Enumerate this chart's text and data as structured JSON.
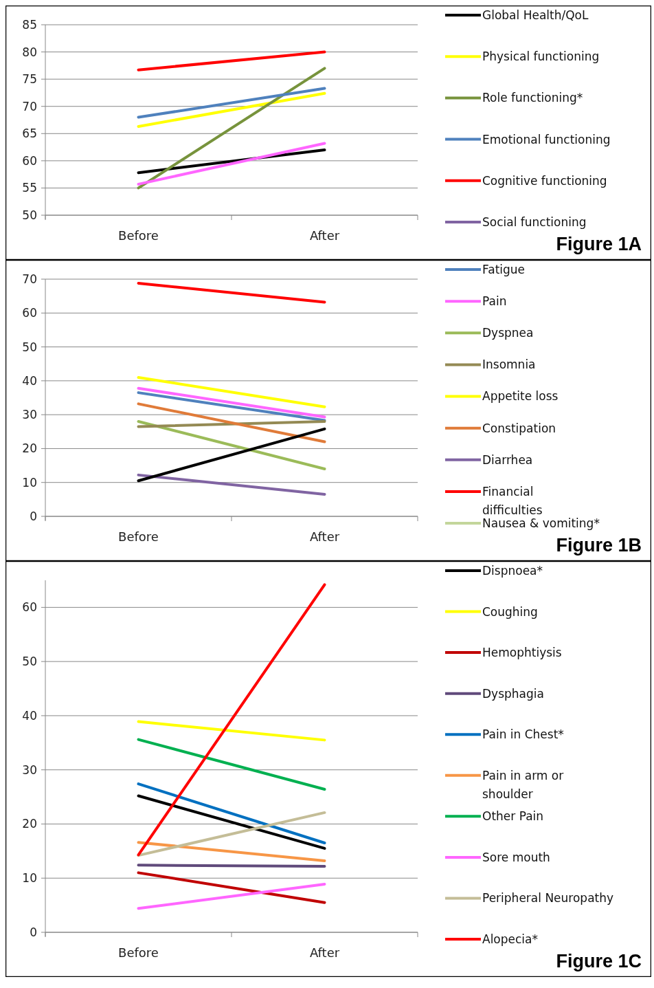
{
  "chart_data": [
    {
      "type": "line",
      "annotations": [
        "Figure 1A"
      ],
      "categories": [
        "Before",
        "After"
      ],
      "ylim": [
        50,
        85
      ],
      "yticks": [
        50,
        55,
        60,
        65,
        70,
        75,
        80,
        85
      ],
      "grid": "y",
      "legend": "right",
      "marker": "none",
      "line_style": "solid",
      "series": [
        {
          "name": "Global Health/QoL",
          "color": "#000000",
          "values": [
            57.8,
            62
          ]
        },
        {
          "name": "Physical functioning",
          "color": "#ffff00",
          "values": [
            66.3,
            72.4
          ]
        },
        {
          "name": "Role functioning*",
          "color": "#77933c",
          "values": [
            55,
            77
          ]
        },
        {
          "name": "Emotional functioning",
          "color": "#4f81bd",
          "values": [
            68,
            73.3
          ]
        },
        {
          "name": "Cognitive functioning",
          "color": "#ff0000",
          "values": [
            76.7,
            80
          ]
        },
        {
          "name": "Social functioning",
          "color": "#8064a2",
          "values": [
            null,
            null
          ]
        },
        {
          "color": "#ff66ff",
          "values": [
            55.7,
            63.2
          ]
        }
      ]
    },
    {
      "type": "line",
      "annotations": [
        "Figure 1B"
      ],
      "categories": [
        "Before",
        "After"
      ],
      "ylim": [
        0,
        70
      ],
      "yticks": [
        0,
        10,
        20,
        30,
        40,
        50,
        60,
        70
      ],
      "grid": "y",
      "legend": "right",
      "marker": "none",
      "line_style": "solid",
      "series": [
        {
          "name": "Fatigue",
          "color": "#4f81bd",
          "values": [
            36.5,
            28.3
          ]
        },
        {
          "name": "Pain",
          "color": "#ff66ff",
          "values": [
            37.8,
            29.3
          ]
        },
        {
          "name": "Dyspnea",
          "color": "#9bbb59",
          "values": [
            28,
            14
          ]
        },
        {
          "name": "Insomnia",
          "color": "#948a54",
          "values": [
            26.5,
            28
          ]
        },
        {
          "name": "Appetite loss",
          "color": "#ffff00",
          "values": [
            41,
            32.3
          ]
        },
        {
          "name": "Constipation",
          "color": "#e07b39",
          "values": [
            33.2,
            22
          ]
        },
        {
          "name": "Diarrhea",
          "color": "#8064a2",
          "values": [
            12.2,
            6.5
          ]
        },
        {
          "name": "Financial difficulties",
          "color": "#ff0000",
          "values": [
            68.8,
            63.2
          ]
        },
        {
          "name": "Nausea & vomiting*",
          "color": "#c3d69b",
          "values": [
            null,
            null
          ]
        },
        {
          "color": "#000000",
          "values": [
            10.5,
            25.8
          ]
        }
      ]
    },
    {
      "type": "line",
      "annotations": [
        "Figure 1C"
      ],
      "categories": [
        "Before",
        "After"
      ],
      "ylim": [
        0,
        65
      ],
      "yticks": [
        0,
        10,
        20,
        30,
        40,
        50,
        60
      ],
      "grid": "y",
      "legend": "right",
      "marker": "none",
      "line_style": "solid",
      "series": [
        {
          "name": "Dispnoea*",
          "color": "#000000",
          "values": [
            25.2,
            15.5
          ]
        },
        {
          "name": "Coughing",
          "color": "#ffff00",
          "values": [
            38.9,
            35.5
          ]
        },
        {
          "name": "Hemophtiysis",
          "color": "#c00000",
          "values": [
            11,
            5.5
          ]
        },
        {
          "name": "Dysphagia",
          "color": "#604a7b",
          "values": [
            12.4,
            12.2
          ]
        },
        {
          "name": "Pain in Chest*",
          "color": "#0070c0",
          "values": [
            27.4,
            16.5
          ]
        },
        {
          "name": "Pain in arm or shoulder",
          "color": "#f79646",
          "values": [
            16.6,
            13.2
          ]
        },
        {
          "name": "Other Pain",
          "color": "#00b050",
          "values": [
            35.6,
            26.4
          ]
        },
        {
          "name": "Sore mouth",
          "color": "#ff66ff",
          "values": [
            4.4,
            8.9
          ]
        },
        {
          "name": "Peripheral Neuropathy",
          "color": "#c4bd97",
          "values": [
            14.2,
            22.1
          ]
        },
        {
          "name": "Alopecia*",
          "color": "#ff0000",
          "values": [
            14.3,
            64.2
          ]
        }
      ]
    }
  ]
}
